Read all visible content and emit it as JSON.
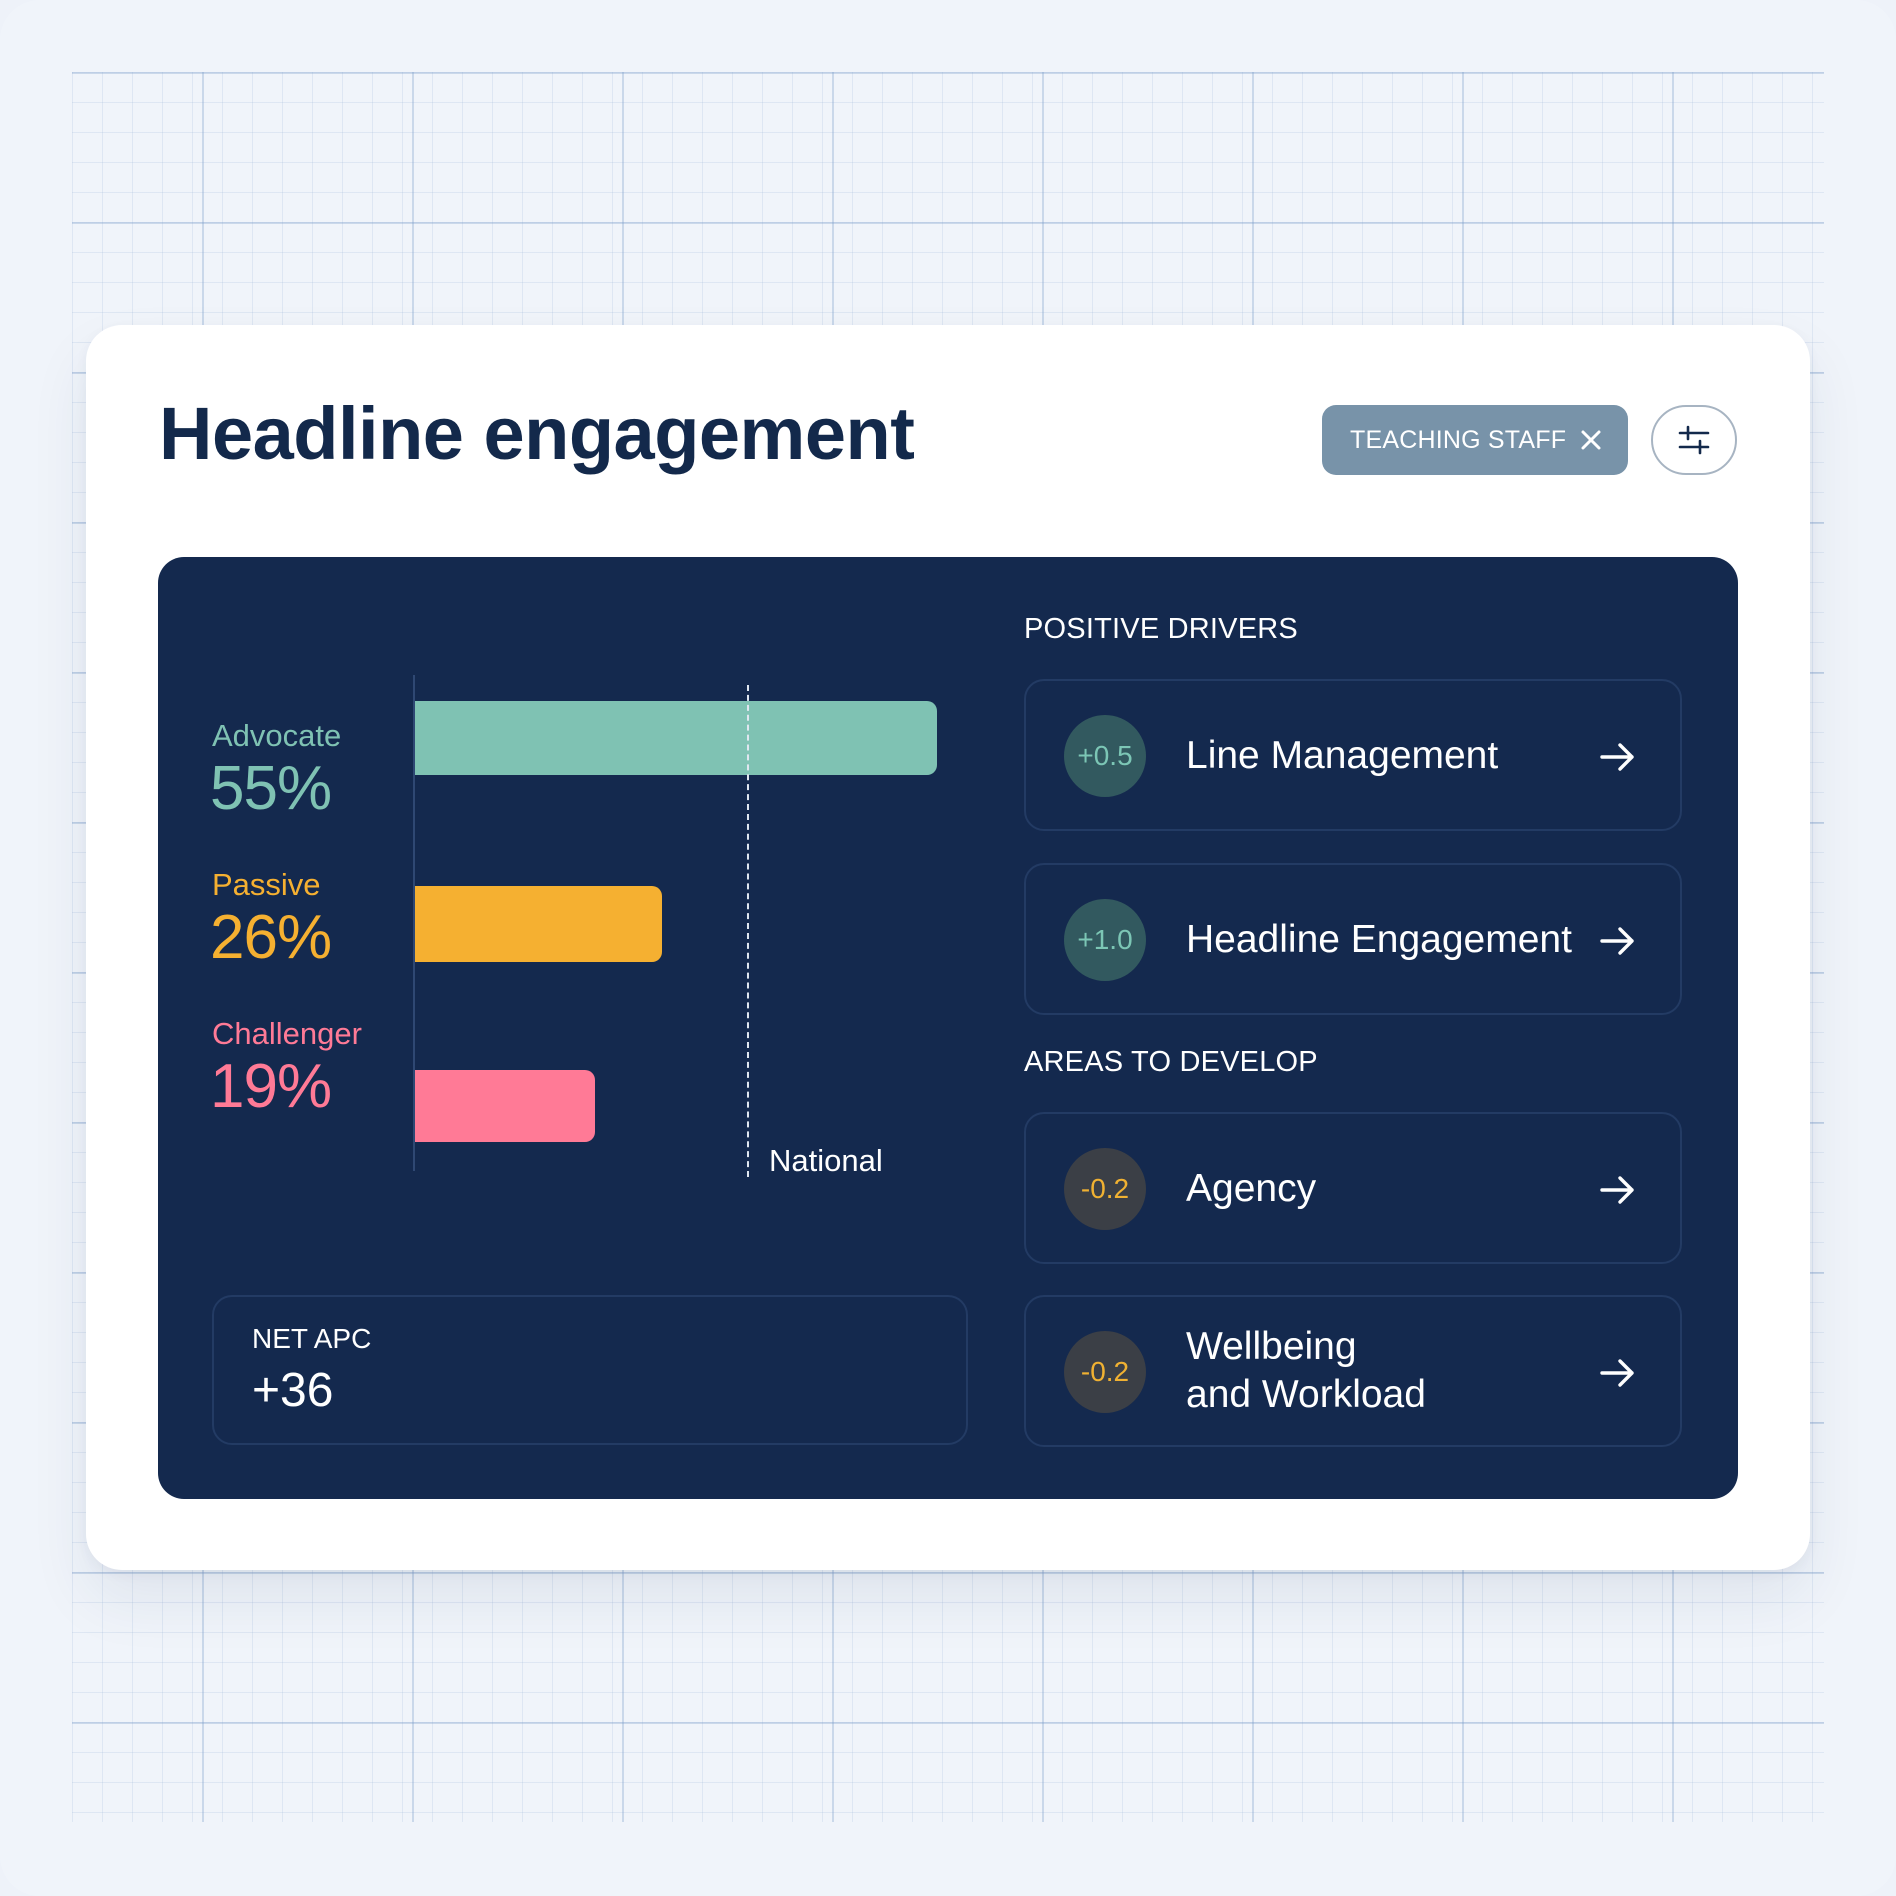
{
  "header": {
    "title": "Headline engagement",
    "filter_chip": "TEACHING STAFF"
  },
  "colors": {
    "advocate": "#7fc2b3",
    "passive": "#f5b031",
    "challenger": "#ff7a96",
    "panel": "#14294e",
    "title": "#13294b"
  },
  "chart_data": {
    "type": "bar",
    "orientation": "horizontal",
    "categories": [
      "Advocate",
      "Passive",
      "Challenger"
    ],
    "values": [
      55,
      26,
      19
    ],
    "value_labels": [
      "55%",
      "26%",
      "19%"
    ],
    "xlim": [
      0,
      55
    ],
    "reference_line": {
      "label": "National",
      "value": 35
    }
  },
  "segments": [
    {
      "label": "Advocate",
      "pct": "55%"
    },
    {
      "label": "Passive",
      "pct": "26%"
    },
    {
      "label": "Challenger",
      "pct": "19%"
    }
  ],
  "national_label": "National",
  "net": {
    "label": "NET APC",
    "value": "+36"
  },
  "positive": {
    "heading": "POSITIVE DRIVERS",
    "items": [
      {
        "score": "+0.5",
        "name": "Line Management"
      },
      {
        "score": "+1.0",
        "name": "Headline Engagement"
      }
    ]
  },
  "develop": {
    "heading": "AREAS TO DEVELOP",
    "items": [
      {
        "score": "-0.2",
        "name": "Agency"
      },
      {
        "score": "-0.2",
        "name": "Wellbeing\nand Workload"
      }
    ]
  },
  "icons": {
    "chip_close": "close-icon",
    "filter": "sliders-icon",
    "driver_arrow": "arrow-right-icon"
  }
}
